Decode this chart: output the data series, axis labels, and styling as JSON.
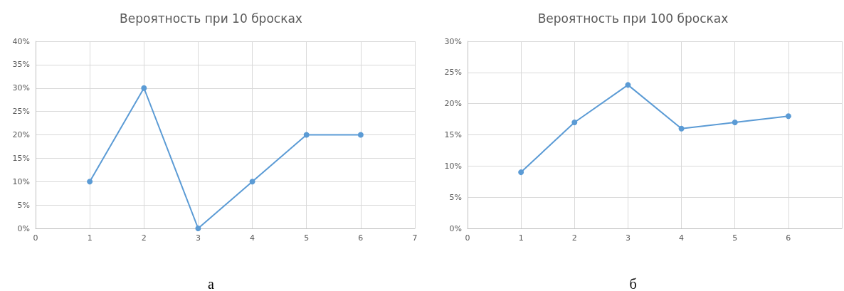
{
  "chart_data": [
    {
      "type": "line",
      "title": "Вероятность при 10 бросках",
      "x": [
        1,
        2,
        3,
        4,
        5,
        6
      ],
      "series": [
        {
          "color": "#5b9bd5",
          "values": [
            10,
            30,
            0,
            10,
            20,
            20
          ]
        }
      ],
      "xlim": [
        0,
        7
      ],
      "xticks": [
        0,
        1,
        2,
        3,
        4,
        5,
        6,
        7
      ],
      "ylim": [
        0,
        40
      ],
      "yticks": [
        {
          "value": 0,
          "label": "0%"
        },
        {
          "value": 5,
          "label": "5%"
        },
        {
          "value": 10,
          "label": "10%"
        },
        {
          "value": 15,
          "label": "15%"
        },
        {
          "value": 20,
          "label": "20%"
        },
        {
          "value": 25,
          "label": "25%"
        },
        {
          "value": 30,
          "label": "30%"
        },
        {
          "value": 35,
          "label": "35%"
        },
        {
          "value": 40,
          "label": "40%"
        }
      ],
      "grid": true,
      "marker": "circle",
      "line_style": "solid",
      "annotations": [
        "а"
      ]
    },
    {
      "type": "line",
      "title": "Вероятность при 100 бросках",
      "x": [
        1,
        2,
        3,
        4,
        5,
        6
      ],
      "series": [
        {
          "color": "#5b9bd5",
          "values": [
            9,
            17,
            23,
            16,
            17,
            18
          ]
        }
      ],
      "xlim": [
        0,
        7
      ],
      "xticks": [
        0,
        1,
        2,
        3,
        4,
        5,
        6,
        {
          "value": 7,
          "label": null
        }
      ],
      "ylim": [
        0,
        30
      ],
      "yticks": [
        {
          "value": 0,
          "label": "0%"
        },
        {
          "value": 5,
          "label": "5%"
        },
        {
          "value": 10,
          "label": "10%"
        },
        {
          "value": 15,
          "label": "15%"
        },
        {
          "value": 20,
          "label": "20%"
        },
        {
          "value": 25,
          "label": "25%"
        },
        {
          "value": 30,
          "label": "30%"
        }
      ],
      "grid": true,
      "marker": "circle",
      "line_style": "solid",
      "annotations": [
        "б"
      ]
    }
  ]
}
